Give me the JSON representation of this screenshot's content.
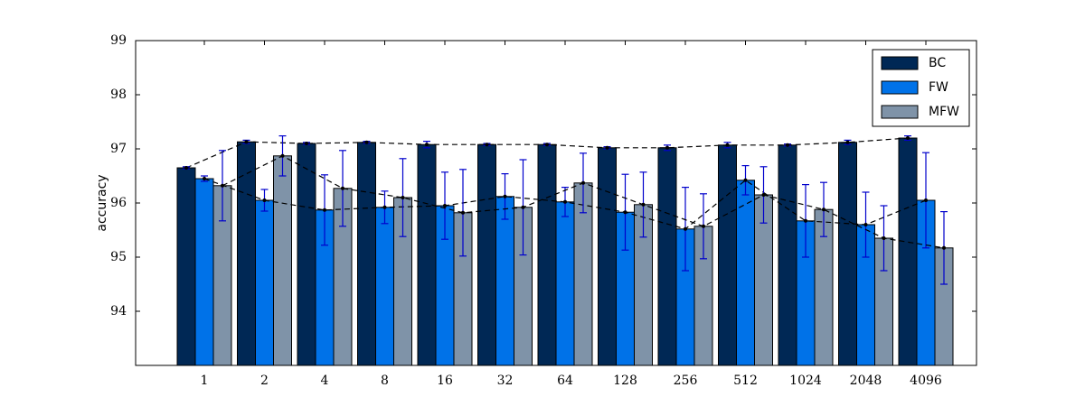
{
  "chart_data": {
    "type": "bar",
    "y_label": "accuracy",
    "categories": [
      "1",
      "2",
      "4",
      "8",
      "16",
      "32",
      "64",
      "128",
      "256",
      "512",
      "1024",
      "2048",
      "4096"
    ],
    "series": [
      {
        "name": "BC",
        "color": "#002855",
        "values": [
          96.65,
          97.13,
          97.1,
          97.12,
          97.08,
          97.08,
          97.08,
          97.02,
          97.02,
          97.07,
          97.07,
          97.12,
          97.2
        ],
        "errors": [
          0.02,
          0.03,
          0.02,
          0.02,
          0.06,
          0.02,
          0.02,
          0.02,
          0.05,
          0.05,
          0.02,
          0.04,
          0.04
        ]
      },
      {
        "name": "FW",
        "color": "#0072e8",
        "values": [
          96.45,
          96.05,
          95.87,
          95.92,
          95.95,
          96.12,
          96.02,
          95.83,
          95.52,
          96.42,
          95.67,
          95.6,
          96.05
        ],
        "errors": [
          0.05,
          0.2,
          0.65,
          0.3,
          0.62,
          0.42,
          0.27,
          0.7,
          0.77,
          0.27,
          0.67,
          0.6,
          0.88
        ]
      },
      {
        "name": "MFW",
        "color": "#7f93a8",
        "values": [
          96.32,
          96.87,
          96.27,
          96.1,
          95.82,
          95.92,
          96.37,
          95.97,
          95.57,
          96.15,
          95.88,
          95.35,
          95.17
        ],
        "errors": [
          0.65,
          0.37,
          0.7,
          0.72,
          0.8,
          0.88,
          0.55,
          0.6,
          0.6,
          0.52,
          0.5,
          0.6,
          0.67
        ]
      }
    ],
    "error_color": "#0000cc",
    "ylim": [
      93,
      99
    ],
    "yticks": [
      94,
      95,
      96,
      97,
      98,
      99
    ],
    "grid": false,
    "legend": "upper right"
  }
}
